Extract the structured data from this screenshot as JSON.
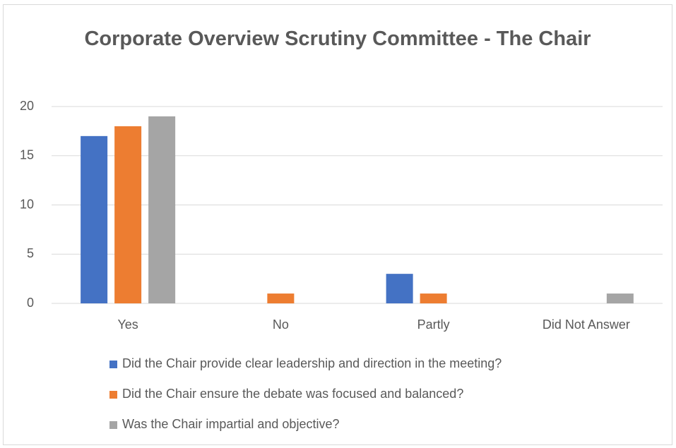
{
  "chart_data": {
    "type": "bar",
    "title": "Corporate Overview Scrutiny Committee - The Chair",
    "categories": [
      "Yes",
      "No",
      "Partly",
      "Did Not Answer"
    ],
    "series": [
      {
        "name": "Did the Chair provide clear leadership and direction in the meeting?",
        "color": "#4472c4",
        "values": [
          17,
          0,
          3,
          0
        ]
      },
      {
        "name": "Did the Chair ensure the debate was focused and balanced?",
        "color": "#ed7d31",
        "values": [
          18,
          1,
          1,
          0
        ]
      },
      {
        "name": "Was the Chair impartial and objective?",
        "color": "#a5a5a5",
        "values": [
          19,
          0,
          0,
          1
        ]
      }
    ],
    "ylim": [
      0,
      20
    ],
    "yticks": [
      0,
      5,
      10,
      15,
      20
    ],
    "grid": true,
    "legend": "bottom"
  }
}
